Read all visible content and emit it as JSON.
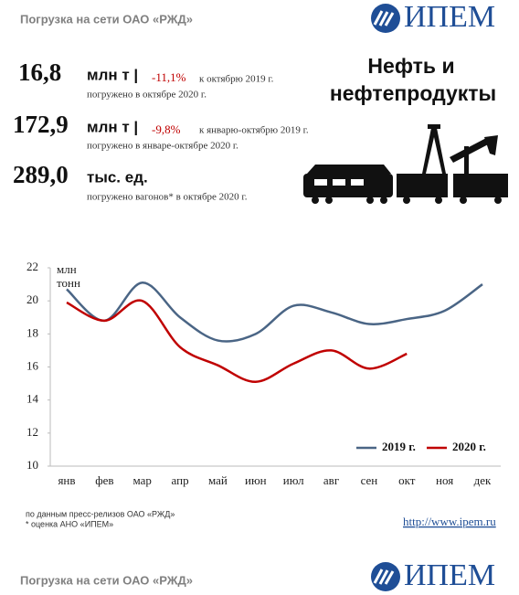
{
  "header": {
    "title": "Погрузка на сети ОАО «РЖД»",
    "logo": "ИПЕМ"
  },
  "stats": [
    {
      "value": "16,8",
      "unit": "млн т |",
      "change": "-11,1%",
      "compare": "к октябрю 2019 г.",
      "note": "погружено в октябре 2020 г."
    },
    {
      "value": "172,9",
      "unit": "млн т |",
      "change": "-9,8%",
      "compare": "к январю-октябрю 2019 г.",
      "note": "погружено в январе-октябре 2020 г."
    },
    {
      "value": "289,0",
      "unit": "тыс. ед.",
      "note": "погружено вагонов* в октябре 2020 г."
    }
  ],
  "topic": [
    "Нефть и",
    "нефтепродукты"
  ],
  "chart_data": {
    "type": "line",
    "ylabel": [
      "млн",
      "тонн"
    ],
    "categories": [
      "янв",
      "фев",
      "мар",
      "апр",
      "май",
      "июн",
      "июл",
      "авг",
      "сен",
      "окт",
      "ноя",
      "дек"
    ],
    "series": [
      {
        "name": "2019 г.",
        "color": "#4a6585",
        "values": [
          20.7,
          18.8,
          21.1,
          19.0,
          17.6,
          18.0,
          19.7,
          19.3,
          18.6,
          18.9,
          19.4,
          21.0
        ]
      },
      {
        "name": "2020 г.",
        "color": "#c00000",
        "values": [
          19.9,
          18.8,
          20.0,
          17.2,
          16.1,
          15.1,
          16.2,
          17.0,
          15.9,
          16.8,
          null,
          null
        ]
      }
    ],
    "ylim": [
      10,
      22
    ],
    "yticks": [
      10,
      12,
      14,
      16,
      18,
      20,
      22
    ],
    "grid": false,
    "legend": "lower right"
  },
  "footer": {
    "source": "по данным  пресс-релизов ОАО «РЖД»",
    "estimate": "* оценка АНО «ИПЕМ»",
    "url": "http://www.ipem.ru",
    "title": "Погрузка на сети ОАО «РЖД»",
    "logo": "ИПЕМ"
  }
}
